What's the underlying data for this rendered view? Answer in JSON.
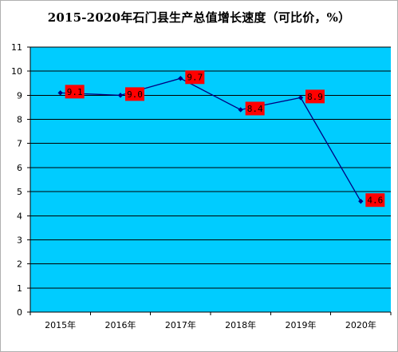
{
  "chart_data": {
    "type": "line",
    "title": "2015-2020年石门县生产总值增长速度（可比价，%）",
    "categories": [
      "2015年",
      "2016年",
      "2017年",
      "2018年",
      "2019年",
      "2020年"
    ],
    "values": [
      9.1,
      9.0,
      9.7,
      8.4,
      8.9,
      4.6
    ],
    "data_labels": [
      "9.1",
      "9.0",
      "9.7",
      "8.4",
      "8.9",
      "4.6"
    ],
    "ylim": [
      0,
      11
    ],
    "yticks": [
      "0",
      "1",
      "2",
      "3",
      "4",
      "5",
      "6",
      "7",
      "8",
      "9",
      "10",
      "11"
    ],
    "grid": true,
    "legend": "none",
    "colors": {
      "plot_background": "#00CCFF",
      "line": "#000080",
      "marker": "#000080",
      "label_background": "#FF0000",
      "grid": "#000000"
    }
  }
}
